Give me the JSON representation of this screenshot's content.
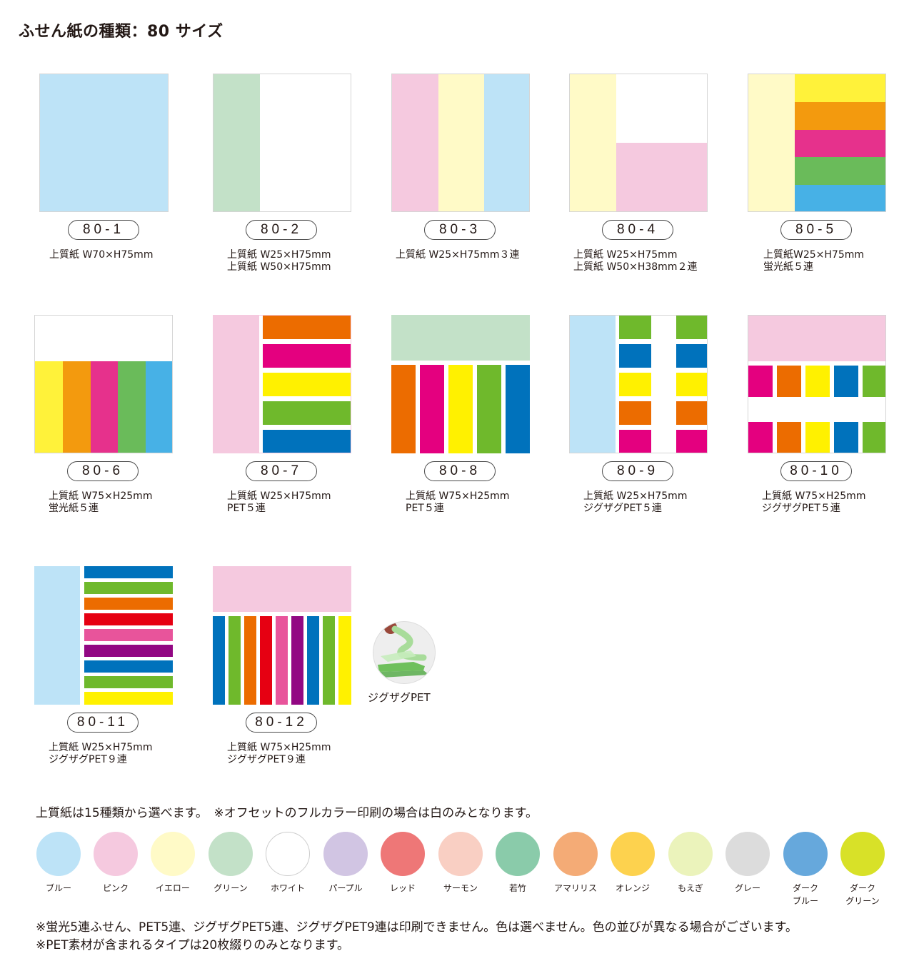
{
  "title": "ふせん紙の種類：80 サイズ",
  "products": [
    {
      "code": "80-1",
      "desc": "上質紙 W70×H75mm"
    },
    {
      "code": "80-2",
      "desc": "上質紙 W25×H75mm\n上質紙 W50×H75mm"
    },
    {
      "code": "80-3",
      "desc": "上質紙 W25×H75mm３連"
    },
    {
      "code": "80-4",
      "desc": "上質紙 W25×H75mm\n上質紙 W50×H38mm２連"
    },
    {
      "code": "80-5",
      "desc": "上質紙W25×H75mm\n蛍光紙５連"
    },
    {
      "code": "80-6",
      "desc": "上質紙 W75×H25mm\n蛍光紙５連"
    },
    {
      "code": "80-7",
      "desc": "上質紙 W25×H75mm\nPET５連"
    },
    {
      "code": "80-8",
      "desc": "上質紙 W75×H25mm\nPET５連"
    },
    {
      "code": "80-9",
      "desc": "上質紙 W25×H75mm\nジグザグPET５連"
    },
    {
      "code": "80-10",
      "desc": "上質紙 W75×H25mm\nジグザグPET５連"
    },
    {
      "code": "80-11",
      "desc": "上質紙 W25×H75mm\nジグザグPET９連"
    },
    {
      "code": "80-12",
      "desc": "上質紙 W75×H25mm\nジグザグPET９連"
    }
  ],
  "zigzag_label": "ジグザグPET",
  "swatch_note": "上質紙は15種類から選べます。　※オフセットのフルカラー印刷の場合は白のみとなります。",
  "swatches": [
    {
      "name": "ブルー",
      "color": "#bde3f7"
    },
    {
      "name": "ピンク",
      "color": "#f5c9df"
    },
    {
      "name": "イエロー",
      "color": "#fffac7"
    },
    {
      "name": "グリーン",
      "color": "#c3e1c8"
    },
    {
      "name": "ホワイト",
      "color": "#ffffff"
    },
    {
      "name": "パープル",
      "color": "#d1c5e3"
    },
    {
      "name": "レッド",
      "color": "#ee7777"
    },
    {
      "name": "サーモン",
      "color": "#f9cfc3"
    },
    {
      "name": "若竹",
      "color": "#8acbaa"
    },
    {
      "name": "アマリリス",
      "color": "#f4ab76"
    },
    {
      "name": "オレンジ",
      "color": "#fdd24e"
    },
    {
      "name": "もえぎ",
      "color": "#ebf3bb"
    },
    {
      "name": "グレー",
      "color": "#dcdcdc"
    },
    {
      "name": "ダーク\nブルー",
      "color": "#66a8dc"
    },
    {
      "name": "ダーク\nグリーン",
      "color": "#d8e128"
    }
  ],
  "footnotes": [
    "※蛍光5連ふせん、PET5連、ジグザグPET5連、ジグザグPET9連は印刷できません。色は選べません。色の並びが異なる場合がございます。",
    "※PET素材が含まれるタイプは20枚綴りのみとなります。"
  ],
  "palette": {
    "blue_paper": "#bde3f7",
    "pink_paper": "#f5c9df",
    "yellow_paper": "#fffac7",
    "green_paper": "#c3e1c8",
    "fluo_yellow": "#fff23a",
    "fluo_orange": "#f39a0e",
    "fluo_pink": "#e6318c",
    "fluo_green": "#6abb5a",
    "fluo_blue": "#47b1e6",
    "pet_orange": "#ec6c00",
    "pet_magenta": "#e4007f",
    "pet_yellow": "#fff100",
    "pet_green": "#6fb92c",
    "pet_blue": "#0072bc",
    "pet_red": "#e60012",
    "pet_pink": "#e8549b",
    "pet_purple": "#920783"
  }
}
